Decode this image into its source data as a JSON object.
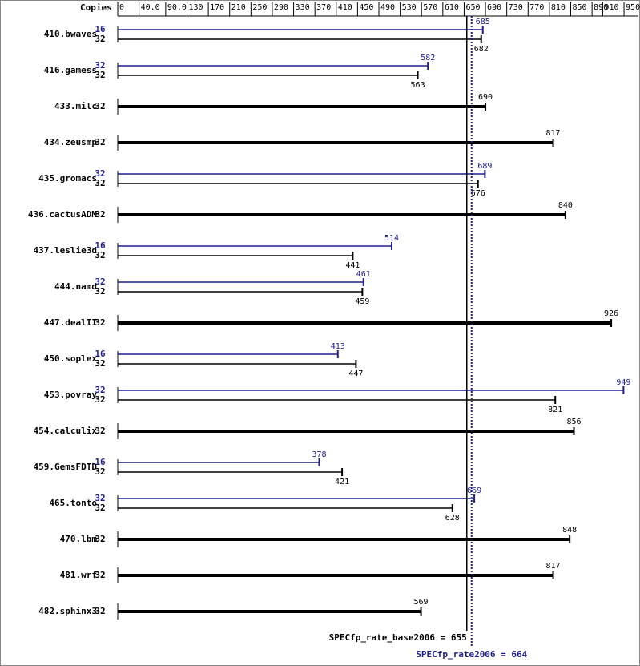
{
  "chart_data": {
    "type": "spec-bar",
    "header": "Copies",
    "categories": [
      "410.bwaves",
      "416.gamess",
      "433.milc",
      "434.zeusmp",
      "435.gromacs",
      "436.cactusADM",
      "437.leslie3d",
      "444.namd",
      "447.dealII",
      "450.soplex",
      "453.povray",
      "454.calculix",
      "459.GemsFDTD",
      "465.tonto",
      "470.lbm",
      "481.wrf",
      "482.sphinx3"
    ],
    "series": [
      {
        "color": "#000000",
        "copies": [
          32,
          32,
          32,
          32,
          32,
          32,
          32,
          32,
          32,
          32,
          32,
          32,
          32,
          32,
          32,
          32,
          32
        ],
        "values": [
          682,
          563,
          690,
          817,
          676,
          840,
          441,
          459,
          926,
          447,
          821,
          856,
          421,
          628,
          848,
          817,
          569
        ]
      },
      {
        "color": "#1f1f8f",
        "copies": [
          16,
          32,
          null,
          null,
          32,
          null,
          16,
          32,
          null,
          16,
          32,
          null,
          16,
          32,
          null,
          null,
          null
        ],
        "values": [
          685,
          582,
          null,
          null,
          689,
          null,
          514,
          461,
          null,
          413,
          949,
          null,
          378,
          669,
          null,
          null,
          null
        ]
      }
    ],
    "xlim": [
      0,
      977
    ],
    "xticks": [
      0,
      {
        "value": 40,
        "label": "40.0"
      },
      {
        "value": 90,
        "label": "90.0"
      },
      130,
      170,
      210,
      250,
      290,
      330,
      370,
      410,
      450,
      490,
      530,
      570,
      610,
      650,
      690,
      730,
      770,
      810,
      850,
      890,
      910,
      950
    ],
    "reference_lines": [
      {
        "label": "SPECfp_rate_base2006 = 655",
        "value": 655,
        "color": "#000000",
        "style": "solid"
      },
      {
        "label": "SPECfp_rate2006 = 664",
        "value": 664,
        "color": "#1f1f8f",
        "style": "dotted"
      }
    ]
  }
}
